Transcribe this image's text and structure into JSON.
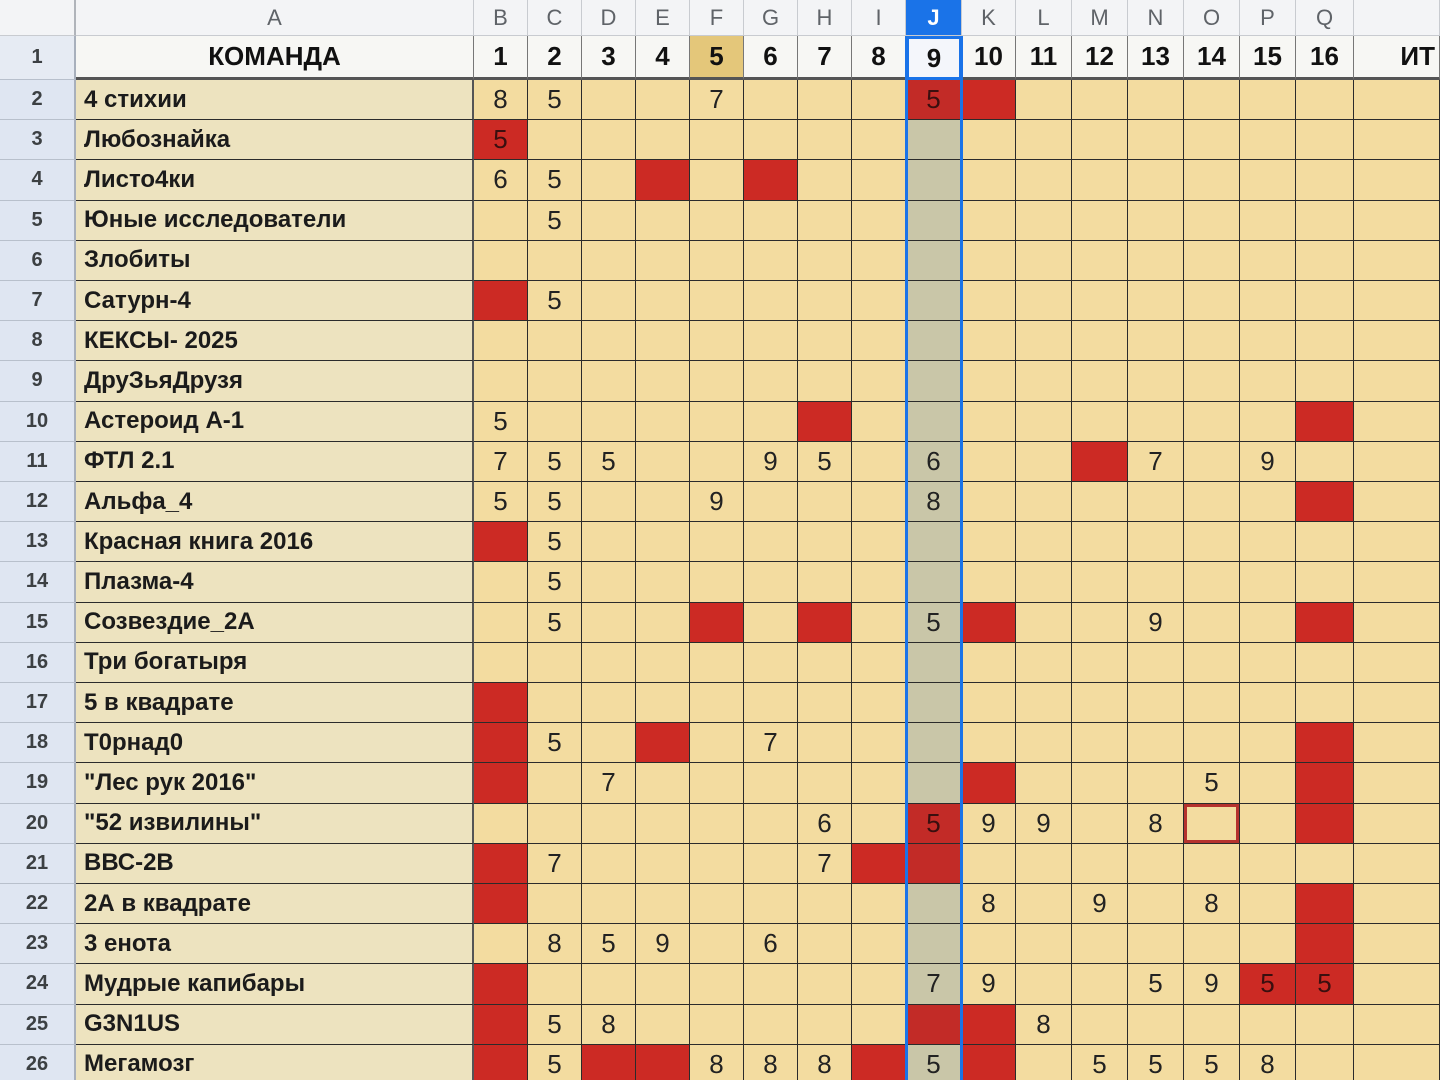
{
  "spreadsheet": {
    "selected_column": "J",
    "highlighted_round": "5",
    "columns": [
      {
        "letter": "A",
        "header": "КОМАНДА"
      },
      {
        "letter": "B",
        "header": "1"
      },
      {
        "letter": "C",
        "header": "2"
      },
      {
        "letter": "D",
        "header": "3"
      },
      {
        "letter": "E",
        "header": "4"
      },
      {
        "letter": "F",
        "header": "5"
      },
      {
        "letter": "G",
        "header": "6"
      },
      {
        "letter": "H",
        "header": "7"
      },
      {
        "letter": "I",
        "header": "8"
      },
      {
        "letter": "J",
        "header": "9"
      },
      {
        "letter": "K",
        "header": "10"
      },
      {
        "letter": "L",
        "header": "11"
      },
      {
        "letter": "M",
        "header": "12"
      },
      {
        "letter": "N",
        "header": "13"
      },
      {
        "letter": "O",
        "header": "14"
      },
      {
        "letter": "P",
        "header": "15"
      },
      {
        "letter": "Q",
        "header": "16"
      },
      {
        "letter": "",
        "header": "ИТ"
      }
    ],
    "rows": [
      {
        "num": "2",
        "team": "4 стихии",
        "cells": {
          "B": "8",
          "C": "5",
          "F": "7",
          "J": "5"
        },
        "red": [
          "J",
          "K"
        ]
      },
      {
        "num": "3",
        "team": "Любознайка",
        "cells": {
          "B": "5"
        },
        "red": [
          "B"
        ]
      },
      {
        "num": "4",
        "team": "Листо4ки",
        "cells": {
          "B": "6",
          "C": "5"
        },
        "red": [
          "E",
          "G"
        ]
      },
      {
        "num": "5",
        "team": "Юные исследователи",
        "cells": {
          "C": "5"
        },
        "red": []
      },
      {
        "num": "6",
        "team": "Злобиты",
        "cells": {},
        "red": []
      },
      {
        "num": "7",
        "team": "Сатурн-4",
        "cells": {
          "C": "5"
        },
        "red": [
          "B"
        ]
      },
      {
        "num": "8",
        "team": "КЕКСЫ- 2025",
        "cells": {},
        "red": []
      },
      {
        "num": "9",
        "team": "ДруЗьяДрузя",
        "cells": {},
        "red": []
      },
      {
        "num": "10",
        "team": "Астероид А-1",
        "cells": {
          "B": "5"
        },
        "red": [
          "H",
          "Q"
        ]
      },
      {
        "num": "11",
        "team": "ФТЛ 2.1",
        "cells": {
          "B": "7",
          "C": "5",
          "D": "5",
          "G": "9",
          "H": "5",
          "J": "6",
          "N": "7",
          "P": "9"
        },
        "red": [
          "M"
        ]
      },
      {
        "num": "12",
        "team": "Альфа_4",
        "cells": {
          "B": "5",
          "C": "5",
          "F": "9",
          "J": "8"
        },
        "red": [
          "Q"
        ]
      },
      {
        "num": "13",
        "team": "Красная книга 2016",
        "cells": {
          "C": "5"
        },
        "red": [
          "B"
        ]
      },
      {
        "num": "14",
        "team": "Плазма-4",
        "cells": {
          "C": "5"
        },
        "red": []
      },
      {
        "num": "15",
        "team": "Созвездие_2А",
        "cells": {
          "C": "5",
          "J": "5",
          "N": "9"
        },
        "red": [
          "F",
          "H",
          "K",
          "Q"
        ]
      },
      {
        "num": "16",
        "team": "Три богатыря",
        "cells": {},
        "red": []
      },
      {
        "num": "17",
        "team": "5 в квадрате",
        "cells": {},
        "red": [
          "B"
        ]
      },
      {
        "num": "18",
        "team": "Т0рнад0",
        "cells": {
          "C": "5",
          "G": "7"
        },
        "red": [
          "B",
          "E",
          "Q"
        ]
      },
      {
        "num": "19",
        "team": "\"Лес рук 2016\"",
        "cells": {
          "D": "7",
          "O": "5"
        },
        "red": [
          "B",
          "K",
          "Q"
        ]
      },
      {
        "num": "20",
        "team": "\"52 извилины\"",
        "cells": {
          "H": "6",
          "J": "5",
          "K": "9",
          "L": "9",
          "N": "8"
        },
        "red": [
          "J",
          "Q"
        ],
        "outline": [
          "O"
        ]
      },
      {
        "num": "21",
        "team": "ВВС-2В",
        "cells": {
          "C": "7",
          "H": "7"
        },
        "red": [
          "B",
          "I",
          "J"
        ]
      },
      {
        "num": "22",
        "team": "2А в квадрате",
        "cells": {
          "K": "8",
          "M": "9",
          "O": "8"
        },
        "red": [
          "B",
          "Q"
        ]
      },
      {
        "num": "23",
        "team": "3 енота",
        "cells": {
          "C": "8",
          "D": "5",
          "E": "9",
          "G": "6"
        },
        "red": [
          "Q"
        ]
      },
      {
        "num": "24",
        "team": "Мудрые капибары",
        "cells": {
          "J": "7",
          "K": "9",
          "N": "5",
          "O": "9",
          "P": "5",
          "Q": "5"
        },
        "red": [
          "B",
          "P",
          "Q"
        ]
      },
      {
        "num": "25",
        "team": "G3N1US",
        "cells": {
          "C": "5",
          "D": "8",
          "L": "8"
        },
        "red": [
          "B",
          "J",
          "K"
        ]
      },
      {
        "num": "26",
        "team": "Мегамозг",
        "cells": {
          "C": "5",
          "F": "8",
          "G": "8",
          "H": "8",
          "J": "5",
          "M": "5",
          "N": "5",
          "O": "5",
          "P": "8"
        },
        "red": [
          "B",
          "D",
          "E",
          "I",
          "K"
        ]
      }
    ]
  }
}
